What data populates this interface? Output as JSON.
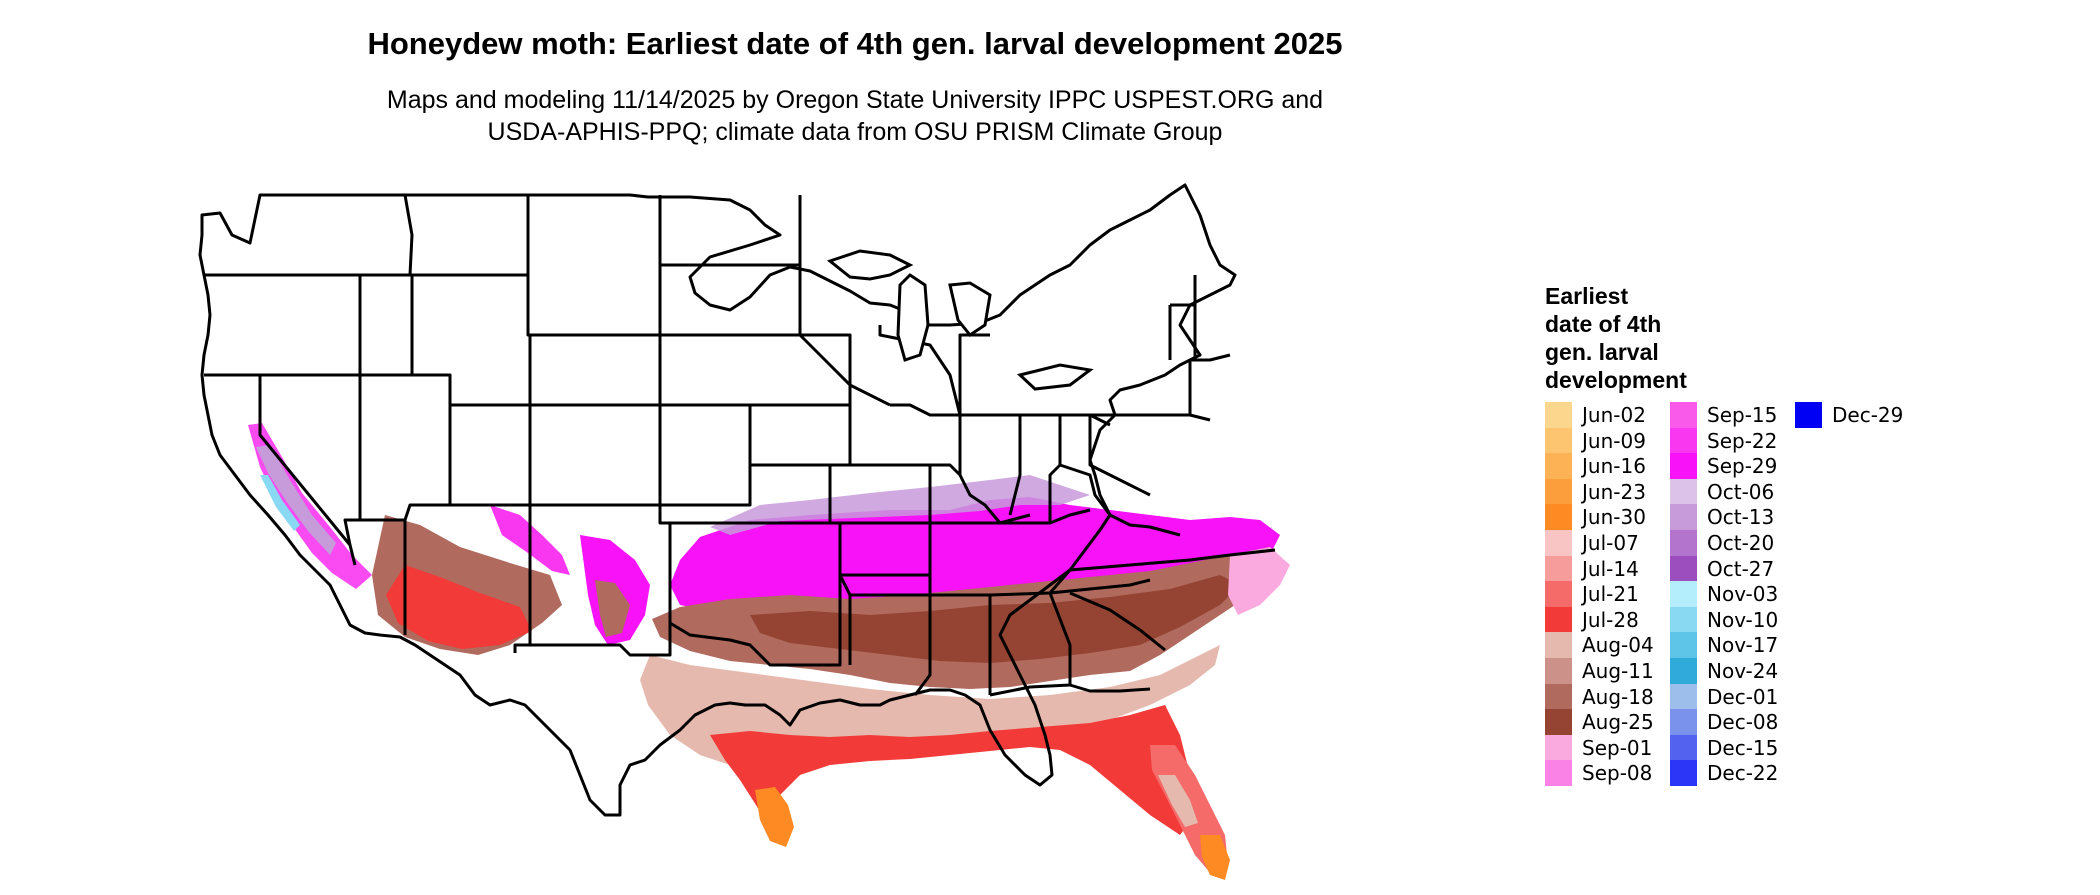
{
  "title": "Honeydew moth: Earliest date of 4th gen. larval development 2025",
  "subtitle_line1": "Maps and modeling 11/14/2025 by Oregon State University IPPC USPEST.ORG and",
  "subtitle_line2": "USDA-APHIS-PPQ; climate data from OSU PRISM Climate Group",
  "legend": {
    "title_lines": [
      "Earliest",
      "date of 4th",
      "gen. larval",
      "development"
    ],
    "columns": [
      [
        {
          "label": "Jun-02",
          "color": "#FCD68C"
        },
        {
          "label": "Jun-09",
          "color": "#FDC56F"
        },
        {
          "label": "Jun-16",
          "color": "#FDB255"
        },
        {
          "label": "Jun-23",
          "color": "#FD9E3C"
        },
        {
          "label": "Jun-30",
          "color": "#FD8A22"
        },
        {
          "label": "Jul-07",
          "color": "#F8C5C4"
        },
        {
          "label": "Jul-14",
          "color": "#F69C9B"
        },
        {
          "label": "Jul-21",
          "color": "#F46B6A"
        },
        {
          "label": "Jul-28",
          "color": "#F23A38"
        },
        {
          "label": "Aug-04",
          "color": "#E6B9AE"
        },
        {
          "label": "Aug-11",
          "color": "#CC928A"
        },
        {
          "label": "Aug-18",
          "color": "#B06A5E"
        },
        {
          "label": "Aug-25",
          "color": "#954332"
        },
        {
          "label": "Sep-01",
          "color": "#FAAADF"
        },
        {
          "label": "Sep-08",
          "color": "#FA82E6"
        }
      ],
      [
        {
          "label": "Sep-15",
          "color": "#F95AEA"
        },
        {
          "label": "Sep-22",
          "color": "#F936F0"
        },
        {
          "label": "Sep-29",
          "color": "#F712F7"
        },
        {
          "label": "Oct-06",
          "color": "#DCC2E8"
        },
        {
          "label": "Oct-13",
          "color": "#C79ADA"
        },
        {
          "label": "Oct-20",
          "color": "#B274CC"
        },
        {
          "label": "Oct-27",
          "color": "#9C4EBF"
        },
        {
          "label": "Nov-03",
          "color": "#B4EEFC"
        },
        {
          "label": "Nov-10",
          "color": "#8AD9F2"
        },
        {
          "label": "Nov-17",
          "color": "#5EC4E8"
        },
        {
          "label": "Nov-24",
          "color": "#2FAADA"
        },
        {
          "label": "Dec-01",
          "color": "#9DBDEA"
        },
        {
          "label": "Dec-08",
          "color": "#7A92EC"
        },
        {
          "label": "Dec-15",
          "color": "#5462F0"
        },
        {
          "label": "Dec-22",
          "color": "#2C36F6"
        }
      ],
      [
        {
          "label": "Dec-29",
          "color": "#0000F5"
        }
      ]
    ]
  }
}
